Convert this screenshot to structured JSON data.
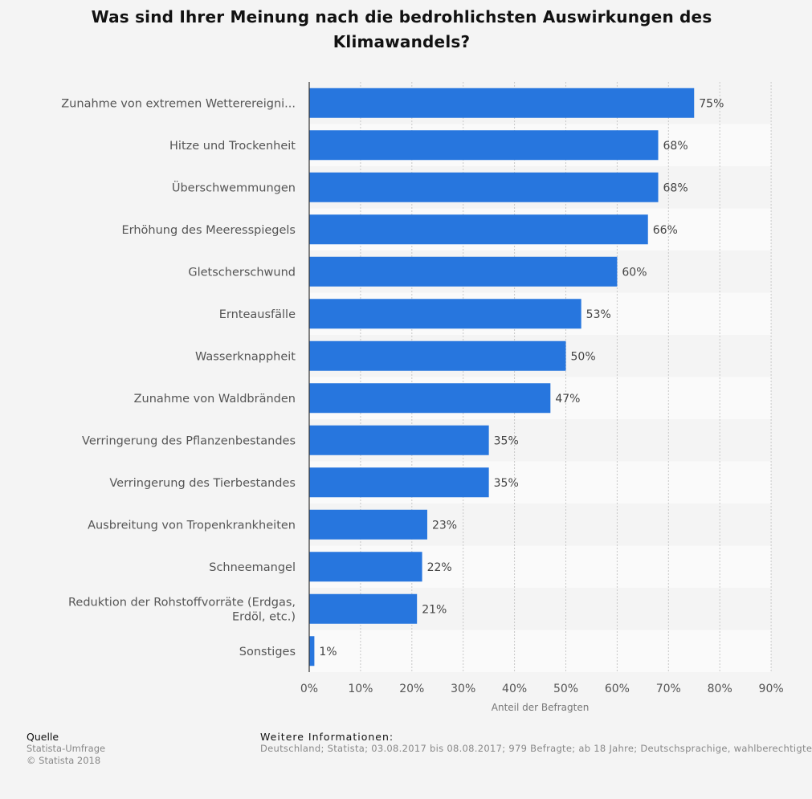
{
  "title": "Was sind Ihrer Meinung nach die bedrohlichsten Auswirkungen des Klimawandels?",
  "chart_data": {
    "type": "bar",
    "orientation": "horizontal",
    "categories": [
      "Zunahme von extremen Wetterereigni...",
      "Hitze und Trockenheit",
      "Überschwemmungen",
      "Erhöhung des Meeresspiegels",
      "Gletscherschwund",
      "Ernteausfälle",
      "Wasserknappheit",
      "Zunahme von Waldbränden",
      "Verringerung des Pflanzenbestandes",
      "Verringerung des Tierbestandes",
      "Ausbreitung von Tropenkrankheiten",
      "Schneemangel",
      "Reduktion der Rohstoffvorräte (Erdgas, Erdöl, etc.)",
      "Sonstiges"
    ],
    "values": [
      75,
      68,
      68,
      66,
      60,
      53,
      50,
      47,
      35,
      35,
      23,
      22,
      21,
      1
    ],
    "value_labels": [
      "75%",
      "68%",
      "68%",
      "66%",
      "60%",
      "53%",
      "50%",
      "47%",
      "35%",
      "35%",
      "23%",
      "22%",
      "21%",
      "1%"
    ],
    "xlabel": "Anteil der Befragten",
    "xlim": [
      0,
      90
    ],
    "x_ticks": [
      "0%",
      "10%",
      "20%",
      "30%",
      "40%",
      "50%",
      "60%",
      "70%",
      "80%",
      "90%"
    ],
    "grid": "vertical dotted",
    "bar_color": "#2776de"
  },
  "source": {
    "heading": "Quelle",
    "lines": [
      "Statista-Umfrage",
      "© Statista 2018"
    ]
  },
  "info": {
    "heading": "Weitere Informationen:",
    "text": "Deutschland; Statista; 03.08.2017 bis 08.08.2017; 979 Befragte; ab 18 Jahre; Deutschsprachige, wahlberechtigte"
  }
}
